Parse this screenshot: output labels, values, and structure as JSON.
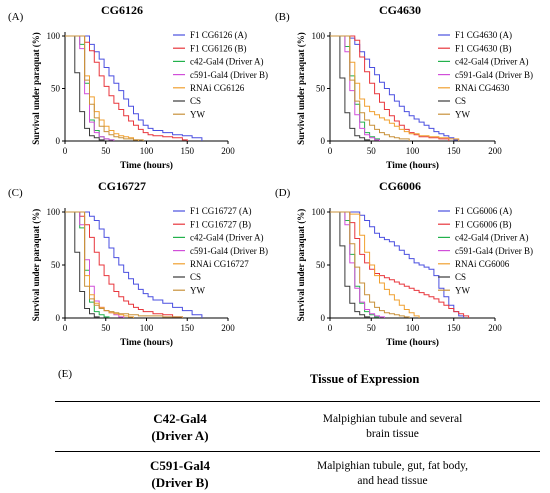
{
  "legend_entries": [
    {
      "key": "a",
      "color": "#4a4fe0"
    },
    {
      "key": "b",
      "color": "#e8363c"
    },
    {
      "key": "c",
      "color": "#22b14c"
    },
    {
      "key": "d",
      "color": "#d14fd9"
    },
    {
      "key": "e",
      "color": "#f0a030"
    },
    {
      "key": "f",
      "color": "#3a3a3a"
    },
    {
      "key": "g",
      "color": "#c8913a"
    }
  ],
  "chart_data": [
    {
      "type": "line",
      "panel": "(A)",
      "title": "CG6126",
      "xlabel": "Time (hours)",
      "ylabel": "Survival under paraquat (%)",
      "xlim": [
        0,
        200
      ],
      "ylim": [
        0,
        100
      ],
      "xticks": [
        "0",
        "50",
        "100",
        "150",
        "200"
      ],
      "yticks": [
        "0",
        "50",
        "100"
      ],
      "legend": "right",
      "series": [
        {
          "name": "F1 CG6126 (A)",
          "color": "#4a4fe0",
          "x": [
            0,
            24,
            30,
            36,
            42,
            48,
            54,
            60,
            66,
            72,
            78,
            84,
            90,
            96,
            102,
            108,
            120,
            132,
            144,
            156,
            168
          ],
          "y": [
            100,
            100,
            92,
            85,
            78,
            70,
            62,
            55,
            48,
            40,
            33,
            26,
            20,
            15,
            12,
            10,
            8,
            6,
            5,
            3,
            0
          ]
        },
        {
          "name": "F1 CG6126 (B)",
          "color": "#e8363c",
          "x": [
            0,
            24,
            30,
            36,
            42,
            48,
            54,
            60,
            66,
            72,
            78,
            84,
            90,
            96,
            102,
            108,
            120,
            132,
            144,
            150
          ],
          "y": [
            100,
            94,
            86,
            75,
            62,
            52,
            43,
            36,
            30,
            24,
            19,
            15,
            11,
            8,
            6,
            5,
            4,
            3,
            1,
            0
          ]
        },
        {
          "name": "c42-Gal4 (Driver A)",
          "color": "#22b14c",
          "x": [
            0,
            18,
            24,
            30,
            36,
            42,
            48,
            54,
            60
          ],
          "y": [
            100,
            92,
            55,
            20,
            10,
            4,
            2,
            1,
            0
          ]
        },
        {
          "name": "c591-Gal4 (Driver B)",
          "color": "#d14fd9",
          "x": [
            0,
            18,
            24,
            30,
            36,
            42,
            48,
            54,
            60
          ],
          "y": [
            100,
            88,
            45,
            18,
            8,
            4,
            2,
            1,
            0
          ]
        },
        {
          "name": "RNAi CG6126",
          "color": "#f0a030",
          "x": [
            0,
            24,
            30,
            36,
            42,
            48,
            54,
            60,
            66,
            72,
            78,
            84,
            90
          ],
          "y": [
            100,
            62,
            42,
            28,
            20,
            14,
            10,
            7,
            5,
            4,
            3,
            1,
            0
          ]
        },
        {
          "name": "CS",
          "color": "#3a3a3a",
          "x": [
            0,
            12,
            18,
            24,
            30,
            36,
            42,
            48
          ],
          "y": [
            100,
            65,
            28,
            12,
            5,
            3,
            1,
            0
          ]
        },
        {
          "name": "YW",
          "color": "#c8913a",
          "x": [
            0,
            24,
            30,
            36,
            42,
            48,
            54,
            60,
            66,
            72,
            78,
            84,
            90,
            96
          ],
          "y": [
            100,
            58,
            35,
            22,
            14,
            9,
            6,
            4,
            3,
            2,
            2,
            1,
            1,
            0
          ]
        }
      ]
    },
    {
      "type": "line",
      "panel": "(B)",
      "title": "CG4630",
      "xlabel": "Time (hours)",
      "ylabel": "Survival under paraquat (%)",
      "xlim": [
        0,
        200
      ],
      "ylim": [
        0,
        100
      ],
      "xticks": [
        "0",
        "50",
        "100",
        "150",
        "200"
      ],
      "yticks": [
        "0",
        "50",
        "100"
      ],
      "legend": "right",
      "series": [
        {
          "name": "F1 CG4630 (A)",
          "color": "#4a4fe0",
          "x": [
            0,
            24,
            30,
            36,
            42,
            48,
            54,
            60,
            66,
            72,
            78,
            84,
            90,
            96,
            102,
            108,
            114,
            120,
            126,
            132,
            138,
            144,
            150,
            156
          ],
          "y": [
            100,
            98,
            92,
            85,
            78,
            70,
            63,
            56,
            50,
            44,
            38,
            33,
            28,
            24,
            21,
            18,
            15,
            12,
            9,
            7,
            5,
            3,
            1,
            0
          ]
        },
        {
          "name": "F1 CG4630 (B)",
          "color": "#e8363c",
          "x": [
            0,
            24,
            30,
            36,
            42,
            48,
            54,
            60,
            66,
            72,
            78,
            84,
            90,
            96,
            102,
            108,
            120,
            132,
            144
          ],
          "y": [
            100,
            100,
            96,
            80,
            66,
            55,
            45,
            37,
            30,
            24,
            19,
            15,
            11,
            8,
            6,
            4,
            3,
            2,
            0
          ]
        },
        {
          "name": "c42-Gal4 (Driver A)",
          "color": "#22b14c",
          "x": [
            0,
            18,
            24,
            30,
            36,
            42,
            48,
            54,
            60
          ],
          "y": [
            100,
            90,
            62,
            35,
            18,
            8,
            4,
            2,
            0
          ]
        },
        {
          "name": "c591-Gal4 (Driver B)",
          "color": "#d14fd9",
          "x": [
            0,
            18,
            24,
            30,
            36,
            42,
            48,
            54,
            60
          ],
          "y": [
            100,
            85,
            48,
            25,
            12,
            6,
            3,
            1,
            0
          ]
        },
        {
          "name": "RNAi CG4630",
          "color": "#f0a030",
          "x": [
            0,
            24,
            30,
            36,
            42,
            48,
            54,
            60,
            66,
            72,
            78,
            84,
            90,
            96,
            108,
            120,
            132,
            144,
            156
          ],
          "y": [
            100,
            75,
            55,
            40,
            33,
            28,
            25,
            22,
            20,
            17,
            14,
            11,
            9,
            7,
            5,
            4,
            3,
            2,
            0
          ]
        },
        {
          "name": "CS",
          "color": "#3a3a3a",
          "x": [
            0,
            12,
            18,
            24,
            30,
            36,
            42,
            48
          ],
          "y": [
            100,
            60,
            27,
            12,
            5,
            3,
            1,
            0
          ]
        },
        {
          "name": "YW",
          "color": "#c8913a",
          "x": [
            0,
            24,
            30,
            36,
            42,
            48,
            54,
            60,
            66,
            72,
            78,
            84,
            96
          ],
          "y": [
            100,
            58,
            38,
            27,
            20,
            15,
            11,
            8,
            6,
            4,
            3,
            2,
            0
          ]
        }
      ]
    },
    {
      "type": "line",
      "panel": "(C)",
      "title": "CG16727",
      "xlabel": "Time (hours)",
      "ylabel": "Survival under paraquat (%)",
      "xlim": [
        0,
        200
      ],
      "ylim": [
        0,
        100
      ],
      "xticks": [
        "0",
        "50",
        "100",
        "150",
        "200"
      ],
      "yticks": [
        "0",
        "50",
        "100"
      ],
      "legend": "right",
      "series": [
        {
          "name": "F1 CG16727 (A)",
          "color": "#4a4fe0",
          "x": [
            0,
            24,
            30,
            36,
            42,
            48,
            54,
            60,
            66,
            72,
            78,
            84,
            90,
            96,
            102,
            108,
            120,
            132,
            144,
            156,
            168
          ],
          "y": [
            100,
            100,
            96,
            92,
            84,
            76,
            66,
            57,
            50,
            43,
            37,
            32,
            27,
            23,
            20,
            17,
            14,
            10,
            7,
            3,
            0
          ]
        },
        {
          "name": "F1 CG16727 (B)",
          "color": "#e8363c",
          "x": [
            0,
            18,
            24,
            30,
            36,
            42,
            48,
            54,
            60,
            66,
            72,
            78,
            84,
            90,
            96,
            108,
            120,
            132,
            144
          ],
          "y": [
            100,
            96,
            88,
            76,
            62,
            50,
            40,
            32,
            25,
            20,
            16,
            13,
            10,
            8,
            6,
            4,
            3,
            1,
            0
          ]
        },
        {
          "name": "c42-Gal4 (Driver A)",
          "color": "#22b14c",
          "x": [
            0,
            18,
            24,
            30,
            36,
            42,
            48,
            54
          ],
          "y": [
            100,
            85,
            45,
            15,
            6,
            3,
            1,
            0
          ]
        },
        {
          "name": "c591-Gal4 (Driver B)",
          "color": "#d14fd9",
          "x": [
            0,
            18,
            24,
            30,
            36,
            42,
            48,
            54,
            60,
            66,
            72
          ],
          "y": [
            100,
            88,
            55,
            30,
            16,
            10,
            7,
            5,
            3,
            1,
            0
          ]
        },
        {
          "name": "RNAi CG16727",
          "color": "#f0a030",
          "x": [
            0,
            24,
            30,
            36,
            42,
            48,
            54,
            60,
            66,
            72,
            78,
            84
          ],
          "y": [
            100,
            40,
            22,
            14,
            10,
            7,
            5,
            4,
            3,
            2,
            1,
            0
          ]
        },
        {
          "name": "CS",
          "color": "#3a3a3a",
          "x": [
            0,
            12,
            18,
            24,
            30,
            36,
            42
          ],
          "y": [
            100,
            62,
            25,
            9,
            4,
            1,
            0
          ]
        },
        {
          "name": "YW",
          "color": "#c8913a",
          "x": [
            0,
            24,
            30,
            36,
            42,
            48,
            54,
            60,
            66,
            72,
            78,
            84,
            90,
            96,
            108,
            120,
            132,
            144
          ],
          "y": [
            100,
            30,
            18,
            12,
            9,
            7,
            6,
            5,
            4,
            4,
            3,
            3,
            2,
            2,
            2,
            1,
            1,
            0
          ]
        }
      ]
    },
    {
      "type": "line",
      "panel": "(D)",
      "title": "CG6006",
      "xlabel": "Time (hours)",
      "ylabel": "Survival under paraquat (%)",
      "xlim": [
        0,
        200
      ],
      "ylim": [
        0,
        100
      ],
      "xticks": [
        "0",
        "50",
        "100",
        "150",
        "200"
      ],
      "yticks": [
        "0",
        "50",
        "100"
      ],
      "legend": "right",
      "series": [
        {
          "name": "F1 CG6006 (A)",
          "color": "#4a4fe0",
          "x": [
            0,
            24,
            36,
            42,
            48,
            54,
            60,
            66,
            72,
            78,
            84,
            90,
            96,
            102,
            108,
            114,
            120,
            126,
            132,
            138,
            144,
            150,
            156,
            162
          ],
          "y": [
            100,
            100,
            97,
            92,
            86,
            80,
            76,
            74,
            72,
            68,
            64,
            60,
            56,
            52,
            50,
            48,
            46,
            40,
            28,
            20,
            12,
            6,
            2,
            0
          ]
        },
        {
          "name": "F1 CG6006 (B)",
          "color": "#e8363c",
          "x": [
            0,
            24,
            30,
            36,
            42,
            48,
            54,
            60,
            66,
            72,
            78,
            84,
            90,
            96,
            102,
            108,
            114,
            120,
            126,
            132,
            138,
            144,
            150,
            156,
            162,
            168
          ],
          "y": [
            100,
            90,
            75,
            60,
            52,
            46,
            42,
            40,
            38,
            36,
            34,
            32,
            30,
            28,
            26,
            24,
            22,
            20,
            18,
            15,
            12,
            9,
            6,
            4,
            2,
            0
          ]
        },
        {
          "name": "c42-Gal4 (Driver A)",
          "color": "#22b14c",
          "x": [
            0,
            18,
            24,
            30,
            36,
            42,
            48,
            54,
            60
          ],
          "y": [
            100,
            92,
            60,
            30,
            14,
            6,
            3,
            1,
            0
          ]
        },
        {
          "name": "c591-Gal4 (Driver B)",
          "color": "#d14fd9",
          "x": [
            0,
            18,
            24,
            30,
            36,
            42,
            48,
            54,
            60,
            66
          ],
          "y": [
            100,
            88,
            52,
            28,
            15,
            8,
            4,
            2,
            1,
            0
          ]
        },
        {
          "name": "RNAi CG6006",
          "color": "#f0a030",
          "x": [
            0,
            24,
            36,
            42,
            48,
            54,
            60,
            66,
            72,
            78,
            84,
            90,
            96,
            102,
            108
          ],
          "y": [
            100,
            98,
            78,
            62,
            50,
            40,
            33,
            27,
            22,
            17,
            12,
            8,
            5,
            2,
            0
          ]
        },
        {
          "name": "CS",
          "color": "#3a3a3a",
          "x": [
            0,
            12,
            18,
            24,
            30,
            36,
            42,
            48
          ],
          "y": [
            100,
            68,
            30,
            14,
            6,
            3,
            1,
            0
          ]
        },
        {
          "name": "YW",
          "color": "#c8913a",
          "x": [
            0,
            24,
            30,
            36,
            42,
            48,
            54,
            60,
            66,
            72,
            78,
            84,
            90,
            96
          ],
          "y": [
            100,
            70,
            48,
            33,
            22,
            15,
            10,
            7,
            5,
            4,
            3,
            2,
            1,
            0
          ]
        }
      ]
    }
  ],
  "table": {
    "label": "(E)",
    "header": "Tissue of Expression",
    "rows": [
      {
        "driver_line1": "C42-Gal4",
        "driver_line2": "(Driver A)",
        "tissue_line1": "Malpighian tubule and several",
        "tissue_line2": "brain tissue"
      },
      {
        "driver_line1": "C591-Gal4",
        "driver_line2": "(Driver B)",
        "tissue_line1": "Malpighian tubule, gut, fat body,",
        "tissue_line2": "and head tissue"
      }
    ]
  }
}
